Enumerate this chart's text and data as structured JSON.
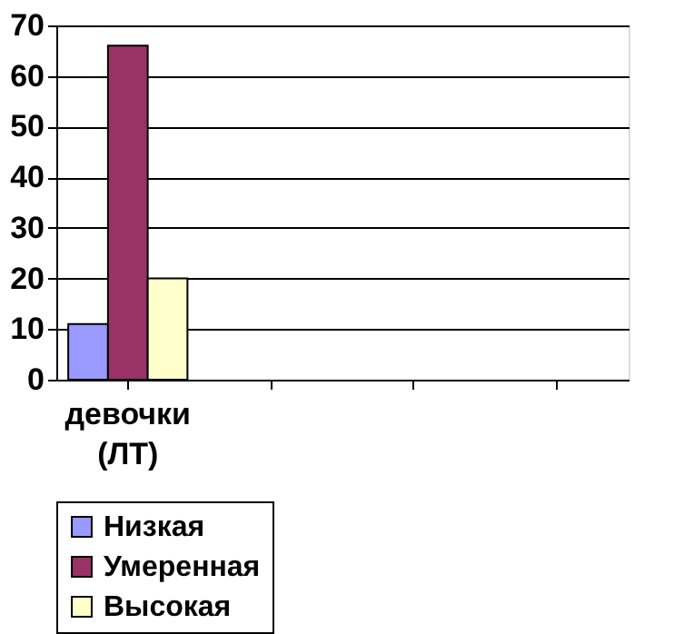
{
  "chart_data": {
    "type": "bar",
    "categories": [
      "девочки (ЛТ)",
      null,
      null,
      null
    ],
    "series": [
      {
        "name": "Низкая",
        "color": "#9999ff",
        "values": [
          11,
          null,
          null,
          null
        ]
      },
      {
        "name": "Умеренная",
        "color": "#993366",
        "values": [
          66,
          null,
          null,
          null
        ]
      },
      {
        "name": "Высокая",
        "color": "#ffffcc",
        "values": [
          20,
          null,
          null,
          null
        ]
      }
    ],
    "ylim": [
      0,
      70
    ],
    "yticks": [
      0,
      10,
      20,
      30,
      40,
      50,
      60,
      70
    ],
    "grid": "y",
    "legend": "bottom"
  }
}
